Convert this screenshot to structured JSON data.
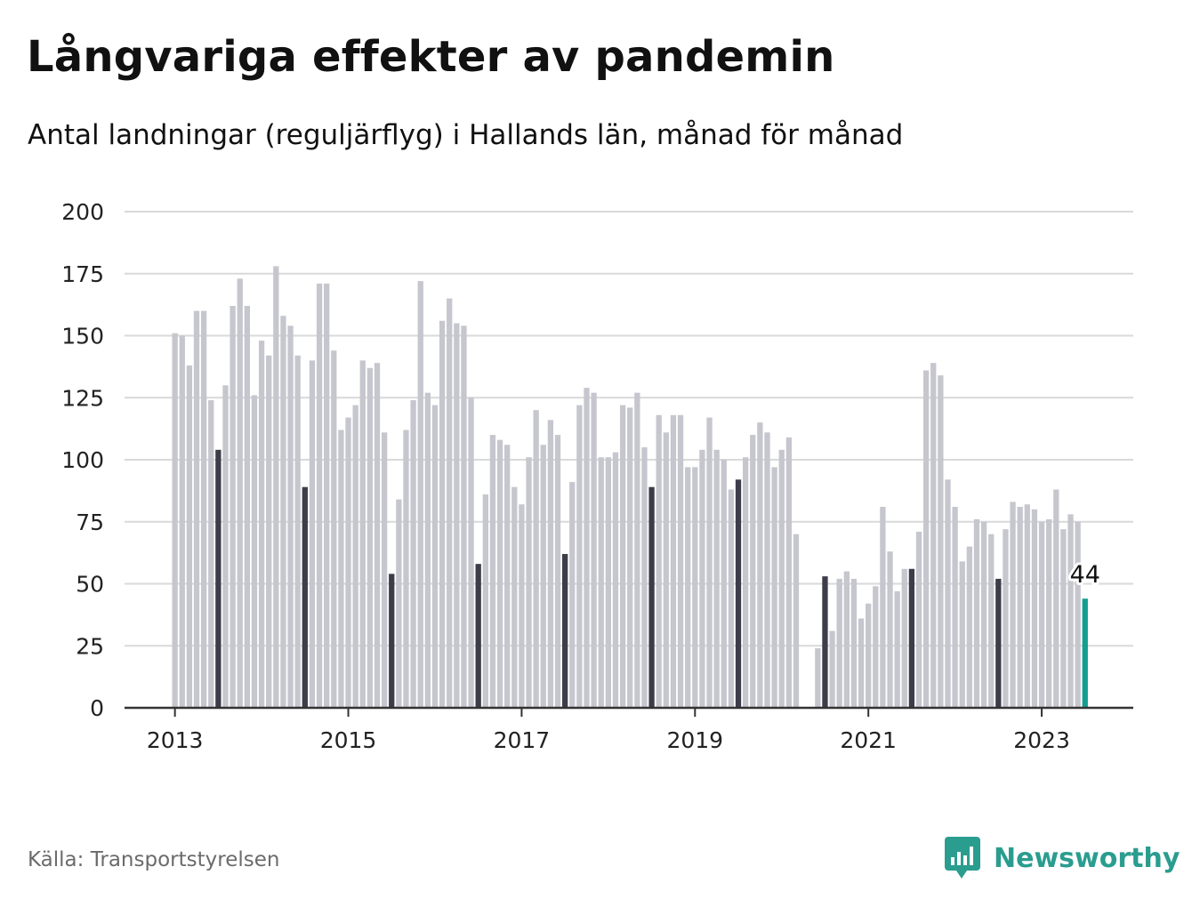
{
  "title": "Långvariga effekter av pandemin",
  "subtitle": "Antal landningar (reguljärflyg) i Hallands län, månad för månad",
  "source": "Källa: Transportstyrelsen",
  "brand": "Newsworthy",
  "colors": {
    "bar": "#c6c6ce",
    "highlight_month": "#3d3d4a",
    "latest": "#139e8f",
    "grid": "#d9d9d9",
    "axis": "#333333",
    "brand": "#2a9d8f"
  },
  "chart_data": {
    "type": "bar",
    "title": "Långvariga effekter av pandemin",
    "subtitle": "Antal landningar (reguljärflyg) i Hallands län, månad för månad",
    "xlabel": "",
    "ylabel": "",
    "ylim": [
      0,
      200
    ],
    "yticks": [
      0,
      25,
      50,
      75,
      100,
      125,
      150,
      175,
      200
    ],
    "xticks": [
      "2013",
      "2015",
      "2017",
      "2019",
      "2021",
      "2023"
    ],
    "start": "2013-01",
    "highlight_month": "juli",
    "grid": true,
    "latest_label": "44",
    "values": [
      151,
      150,
      138,
      160,
      160,
      124,
      104,
      130,
      162,
      173,
      162,
      126,
      148,
      142,
      178,
      158,
      154,
      142,
      89,
      140,
      171,
      171,
      144,
      112,
      117,
      122,
      140,
      137,
      139,
      111,
      54,
      84,
      112,
      124,
      172,
      127,
      122,
      156,
      165,
      155,
      154,
      125,
      58,
      86,
      110,
      108,
      106,
      89,
      82,
      101,
      120,
      106,
      116,
      110,
      62,
      91,
      122,
      129,
      127,
      101,
      101,
      103,
      122,
      121,
      127,
      105,
      89,
      118,
      111,
      118,
      118,
      97,
      97,
      104,
      117,
      104,
      100,
      88,
      92,
      101,
      110,
      115,
      111,
      97,
      104,
      109,
      70,
      0,
      0,
      24,
      53,
      31,
      52,
      55,
      52,
      36,
      42,
      49,
      81,
      63,
      47,
      56,
      56,
      71,
      136,
      139,
      134,
      92,
      81,
      59,
      65,
      76,
      75,
      70,
      52,
      72,
      83,
      81,
      82,
      80,
      75,
      76,
      88,
      72,
      78,
      75,
      44
    ]
  }
}
